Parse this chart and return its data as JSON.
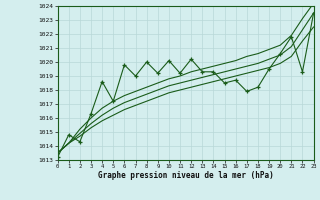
{
  "xlabel": "Graphe pression niveau de la mer (hPa)",
  "xlim": [
    0,
    23
  ],
  "ylim": [
    1013,
    1024
  ],
  "yticks": [
    1013,
    1014,
    1015,
    1016,
    1017,
    1018,
    1019,
    1020,
    1021,
    1022,
    1023,
    1024
  ],
  "xticks": [
    0,
    1,
    2,
    3,
    4,
    5,
    6,
    7,
    8,
    9,
    10,
    11,
    12,
    13,
    14,
    15,
    16,
    17,
    18,
    19,
    20,
    21,
    22,
    23
  ],
  "bg_color": "#d4eeee",
  "grid_color": "#b8d8d8",
  "line_color": "#1a5c1a",
  "x": [
    0,
    1,
    2,
    3,
    4,
    5,
    6,
    7,
    8,
    9,
    10,
    11,
    12,
    13,
    14,
    15,
    16,
    17,
    18,
    19,
    20,
    21,
    22,
    23
  ],
  "zigzag": [
    1013.2,
    1014.8,
    1014.3,
    1016.3,
    1018.6,
    1017.2,
    1019.8,
    1019.0,
    1020.0,
    1019.2,
    1020.1,
    1019.2,
    1020.2,
    1019.3,
    1019.3,
    1018.5,
    1018.7,
    1017.9,
    1018.2,
    1019.5,
    1020.6,
    1021.8,
    1019.3,
    1023.5
  ],
  "trend1": [
    1013.5,
    1014.2,
    1014.7,
    1015.3,
    1015.8,
    1016.2,
    1016.6,
    1016.9,
    1017.2,
    1017.5,
    1017.8,
    1018.0,
    1018.2,
    1018.4,
    1018.6,
    1018.8,
    1019.0,
    1019.2,
    1019.4,
    1019.6,
    1019.9,
    1020.4,
    1021.5,
    1022.5
  ],
  "trend2": [
    1013.5,
    1014.2,
    1014.9,
    1015.6,
    1016.2,
    1016.7,
    1017.1,
    1017.4,
    1017.7,
    1018.0,
    1018.3,
    1018.5,
    1018.7,
    1018.9,
    1019.1,
    1019.3,
    1019.5,
    1019.7,
    1019.9,
    1020.2,
    1020.5,
    1021.1,
    1022.3,
    1023.5
  ],
  "trend3": [
    1013.5,
    1014.2,
    1015.2,
    1016.0,
    1016.7,
    1017.2,
    1017.6,
    1017.9,
    1018.2,
    1018.5,
    1018.8,
    1019.0,
    1019.3,
    1019.5,
    1019.7,
    1019.9,
    1020.1,
    1020.4,
    1020.6,
    1020.9,
    1021.2,
    1021.9,
    1023.1,
    1024.2
  ]
}
